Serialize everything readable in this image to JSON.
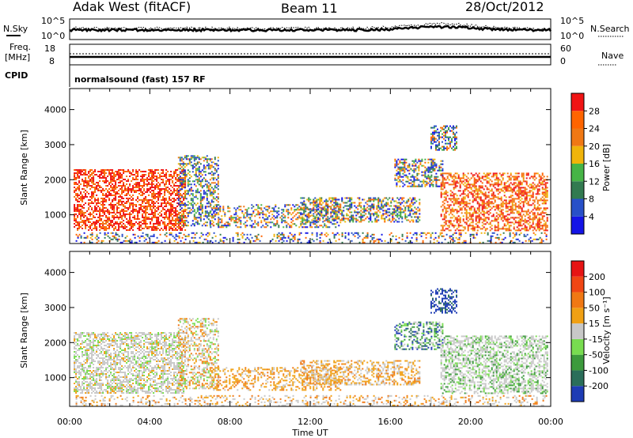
{
  "header": {
    "station": "Adak West (fitACF)",
    "beam": "Beam 11",
    "date": "28/Oct/2012"
  },
  "strip_panels": {
    "noise": {
      "left_label": "N.Sky",
      "right_label": "N.Search",
      "left_ticks": [
        "10^5",
        "10^0"
      ],
      "right_ticks": [
        "10^5",
        "10^0"
      ]
    },
    "freq": {
      "left_label_top": "Freq.",
      "left_label_unit": "[MHz]",
      "right_label": "Nave",
      "left_ticks": [
        "18",
        "8"
      ],
      "right_ticks": [
        "60",
        "0"
      ]
    },
    "cpid": {
      "label": "CPID",
      "text": "normalsound (fast) 157 RF"
    }
  },
  "chart_data": [
    {
      "type": "heatmap",
      "name": "power",
      "ylabel": "Slant Range [km]",
      "ylim": [
        180,
        4600
      ],
      "yticks": [
        "1000",
        "2000",
        "3000",
        "4000"
      ],
      "colorbar": {
        "label": "Power [dB]",
        "ticks": [
          "4",
          "8",
          "12",
          "16",
          "20",
          "24",
          "28"
        ],
        "colors": [
          "#1414e6",
          "#2850c8",
          "#327a50",
          "#46b446",
          "#f0b40a",
          "#f07814",
          "#ff6400",
          "#f01414"
        ]
      }
    },
    {
      "type": "heatmap",
      "name": "velocity",
      "ylabel": "Slant Range [km]",
      "ylim": [
        180,
        4600
      ],
      "yticks": [
        "1000",
        "2000",
        "3000",
        "4000"
      ],
      "xlabel": "Time UT",
      "xticks": [
        "00:00",
        "04:00",
        "08:00",
        "12:00",
        "16:00",
        "20:00",
        "00:00"
      ],
      "colorbar": {
        "label": "Velocity [m s⁻¹]",
        "ticks": [
          "200",
          "100",
          "50",
          "15",
          "-15",
          "-50",
          "-100",
          "-200"
        ],
        "colors": [
          "#1e3cb4",
          "#2a6e5a",
          "#3c9a3c",
          "#78dc50",
          "#c8c8c8",
          "#f0a014",
          "#f07814",
          "#f04614",
          "#e61414"
        ]
      }
    }
  ]
}
